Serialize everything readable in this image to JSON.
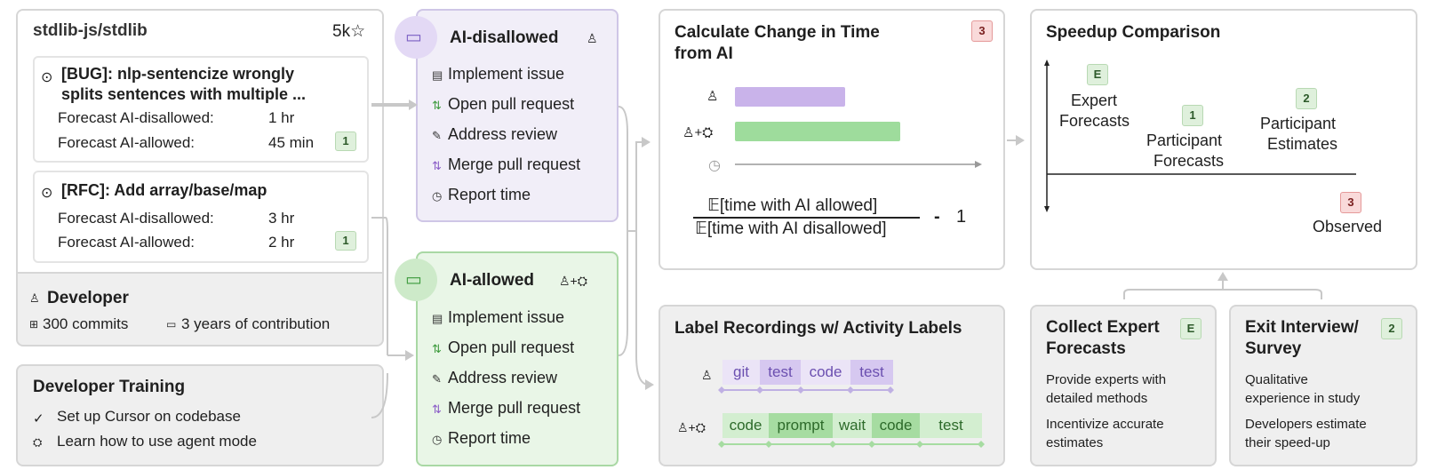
{
  "repo": {
    "name": "stdlib-js/stdlib",
    "stars": "5k"
  },
  "issues": [
    {
      "title_line1": "[BUG]: nlp-sentencize wrongly",
      "title_line2": "splits sentences with multiple ...",
      "forecast_disallowed_label": "Forecast AI-disallowed:",
      "forecast_disallowed_value": "1 hr",
      "forecast_allowed_label": "Forecast AI-allowed:",
      "forecast_allowed_value": "45 min",
      "badge": "1"
    },
    {
      "title_line1": "[RFC]: Add array/base/map",
      "forecast_disallowed_label": "Forecast AI-disallowed:",
      "forecast_disallowed_value": "3 hr",
      "forecast_allowed_label": "Forecast AI-allowed:",
      "forecast_allowed_value": "2 hr",
      "badge": "1"
    }
  ],
  "developer": {
    "title": "Developer",
    "commits": "300 commits",
    "years": "3 years of contribution"
  },
  "training": {
    "title": "Developer Training",
    "items": [
      "Set up Cursor on codebase",
      "Learn how to use agent mode"
    ]
  },
  "conditions": {
    "disallowed": {
      "title": "AI-disallowed",
      "steps": [
        "Implement issue",
        "Open pull request",
        "Address review",
        "Merge pull request",
        "Report time"
      ]
    },
    "allowed": {
      "title": "AI-allowed",
      "steps": [
        "Implement issue",
        "Open pull request",
        "Address review",
        "Merge pull request",
        "Report time"
      ]
    }
  },
  "calc": {
    "title_line1": "Calculate Change in Time",
    "title_line2": "from AI",
    "badge": "3",
    "numerator": "𝔼[time with AI allowed]",
    "denominator": "𝔼[time with AI disallowed]",
    "minus": "-",
    "one": "1",
    "bars": [
      {
        "label": "human",
        "value": 0.42,
        "color": "#c9b3ea"
      },
      {
        "label": "human+ai",
        "value": 0.63,
        "color": "#9edc9c"
      }
    ]
  },
  "speedup": {
    "title": "Speedup Comparison",
    "points": [
      {
        "badge": "E",
        "line1": "Expert",
        "line2": "Forecasts",
        "kind": "green"
      },
      {
        "badge": "1",
        "line1": "Participant",
        "line2": "Forecasts",
        "kind": "green"
      },
      {
        "badge": "2",
        "line1": "Participant",
        "line2": "Estimates",
        "kind": "green"
      },
      {
        "badge": "3",
        "line1": "Observed",
        "kind": "red"
      }
    ]
  },
  "labels": {
    "title": "Label Recordings w/ Activity Labels",
    "row1": [
      "git",
      "test",
      "code",
      "test"
    ],
    "row2": [
      "code",
      "prompt",
      "wait",
      "code",
      "test"
    ]
  },
  "expert": {
    "title_line1": "Collect Expert",
    "title_line2": "Forecasts",
    "badge": "E",
    "p1_line1": "Provide experts with",
    "p1_line2": "detailed methods",
    "p2_line1": "Incentivize accurate",
    "p2_line2": "estimates"
  },
  "exit": {
    "title_line1": "Exit Interview/",
    "title_line2": "Survey",
    "badge": "2",
    "p1_line1": "Qualitative",
    "p1_line2": "experience in study",
    "p2_line1": "Developers estimate",
    "p2_line2": "their speed-up"
  },
  "colors": {
    "purple_bg": "#f1eef8",
    "purple_border": "#cfc6e6",
    "green_bg": "#e9f6e7",
    "green_border": "#a9d8a4",
    "arrow": "#c8c8c8"
  }
}
